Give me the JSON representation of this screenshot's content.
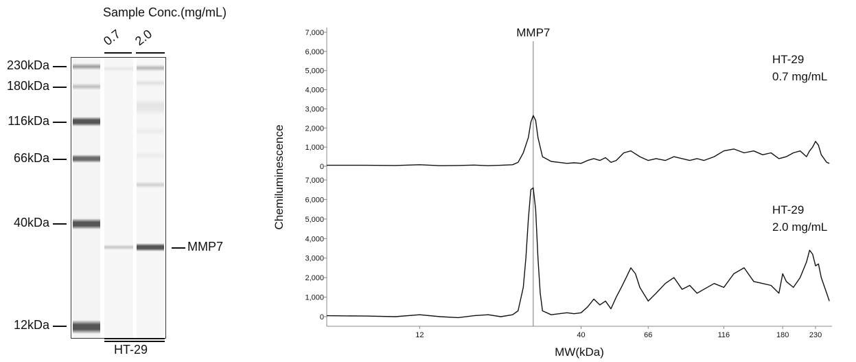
{
  "gel": {
    "sample_conc_title": "Sample Conc.(mg/mL)",
    "lanes": [
      {
        "label": "0.7"
      },
      {
        "label": "2.0"
      }
    ],
    "ladder": [
      {
        "label": "230kDa",
        "kda": 230
      },
      {
        "label": "180kDa",
        "kda": 180
      },
      {
        "label": "116kDa",
        "kda": 116
      },
      {
        "label": "66kDa",
        "kda": 66
      },
      {
        "label": "40kDa",
        "kda": 40
      },
      {
        "label": "12kDa",
        "kda": 12
      }
    ],
    "target_label": "MMP7",
    "cell_line": "HT-29"
  },
  "chart_data": {
    "type": "line",
    "ylabel": "Chemiluminescence",
    "xlabel": "MW(kDa)",
    "x_scale": "log",
    "x_ticks": [
      12,
      40,
      66,
      116,
      180,
      230
    ],
    "x_range": [
      6,
      260
    ],
    "y_ticks": [
      0,
      1000,
      2000,
      3000,
      4000,
      5000,
      6000,
      7000
    ],
    "y_tick_labels": [
      "0",
      "1,000",
      "2,000",
      "3,000",
      "4,000",
      "5,000",
      "6,000",
      "7,000"
    ],
    "ylim": [
      0,
      7000
    ],
    "grid": false,
    "annotation": {
      "label": "MMP7",
      "x": 28
    },
    "panels": [
      {
        "legend_line1": "HT-29",
        "legend_line2": "0.7 mg/mL",
        "series": {
          "x": [
            6,
            8,
            10,
            12,
            14,
            16,
            18,
            20,
            22,
            24,
            25,
            26,
            27,
            27.5,
            28,
            28.5,
            29,
            30,
            32,
            34,
            36,
            38,
            40,
            42,
            44,
            46,
            48,
            50,
            52,
            55,
            58,
            62,
            66,
            70,
            75,
            80,
            85,
            90,
            95,
            100,
            108,
            116,
            125,
            135,
            145,
            155,
            165,
            175,
            185,
            195,
            205,
            215,
            220,
            225,
            230,
            235,
            240,
            250,
            255
          ],
          "y": [
            50,
            50,
            40,
            80,
            30,
            40,
            60,
            30,
            50,
            80,
            200,
            700,
            1500,
            2300,
            2650,
            2400,
            1500,
            500,
            250,
            200,
            150,
            180,
            150,
            300,
            400,
            300,
            450,
            200,
            300,
            700,
            800,
            500,
            300,
            400,
            300,
            500,
            400,
            300,
            400,
            300,
            500,
            800,
            900,
            700,
            800,
            600,
            700,
            400,
            500,
            700,
            800,
            500,
            800,
            1000,
            1300,
            1100,
            600,
            200,
            150
          ]
        }
      },
      {
        "legend_line1": "HT-29",
        "legend_line2": "2.0 mg/mL",
        "series": {
          "x": [
            6,
            8,
            10,
            12,
            14,
            16,
            18,
            20,
            22,
            24,
            25,
            26,
            26.5,
            27,
            27.5,
            28,
            28.5,
            29,
            29.5,
            30,
            32,
            34,
            36,
            38,
            40,
            42,
            44,
            46,
            48,
            50,
            52,
            54,
            56,
            58,
            60,
            62,
            66,
            70,
            75,
            80,
            85,
            90,
            95,
            100,
            108,
            116,
            125,
            135,
            145,
            155,
            165,
            175,
            180,
            185,
            195,
            205,
            215,
            220,
            225,
            230,
            235,
            240,
            250,
            255
          ],
          "y": [
            50,
            30,
            0,
            100,
            0,
            -50,
            50,
            100,
            0,
            100,
            300,
            1500,
            3000,
            5000,
            6500,
            6600,
            5500,
            3000,
            1200,
            300,
            100,
            150,
            200,
            150,
            200,
            500,
            900,
            600,
            800,
            400,
            1000,
            1500,
            2000,
            2500,
            2200,
            1500,
            800,
            1200,
            1700,
            2000,
            1400,
            1600,
            1200,
            1400,
            1700,
            1500,
            2200,
            2500,
            1800,
            1700,
            1600,
            1200,
            2200,
            1800,
            1500,
            2000,
            2800,
            3400,
            3200,
            2600,
            2700,
            2000,
            1200,
            800
          ]
        }
      }
    ]
  }
}
